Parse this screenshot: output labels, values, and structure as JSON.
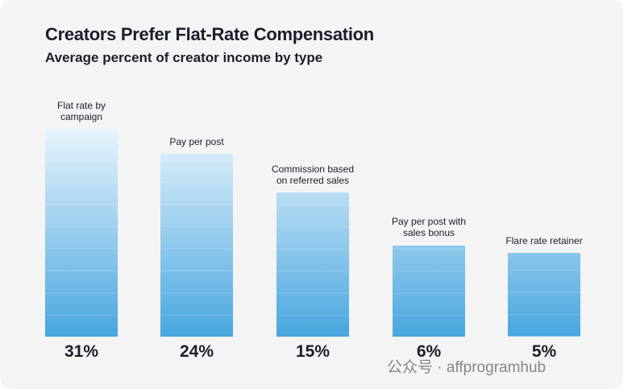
{
  "chart_data": {
    "type": "bar",
    "title": "Creators Prefer Flat-Rate Compensation",
    "subtitle": "Average percent of creator income by type",
    "categories": [
      "Flat rate by campaign",
      "Pay per post",
      "Commission based on referred sales",
      "Pay per post with sales bonus",
      "Flare rate retainer"
    ],
    "values": [
      31,
      24,
      15,
      6,
      5
    ],
    "value_labels": [
      "31%",
      "24%",
      "15%",
      "6%",
      "5%"
    ],
    "color": "#48a6df",
    "watermark": "公众号 · affprogramhub"
  }
}
